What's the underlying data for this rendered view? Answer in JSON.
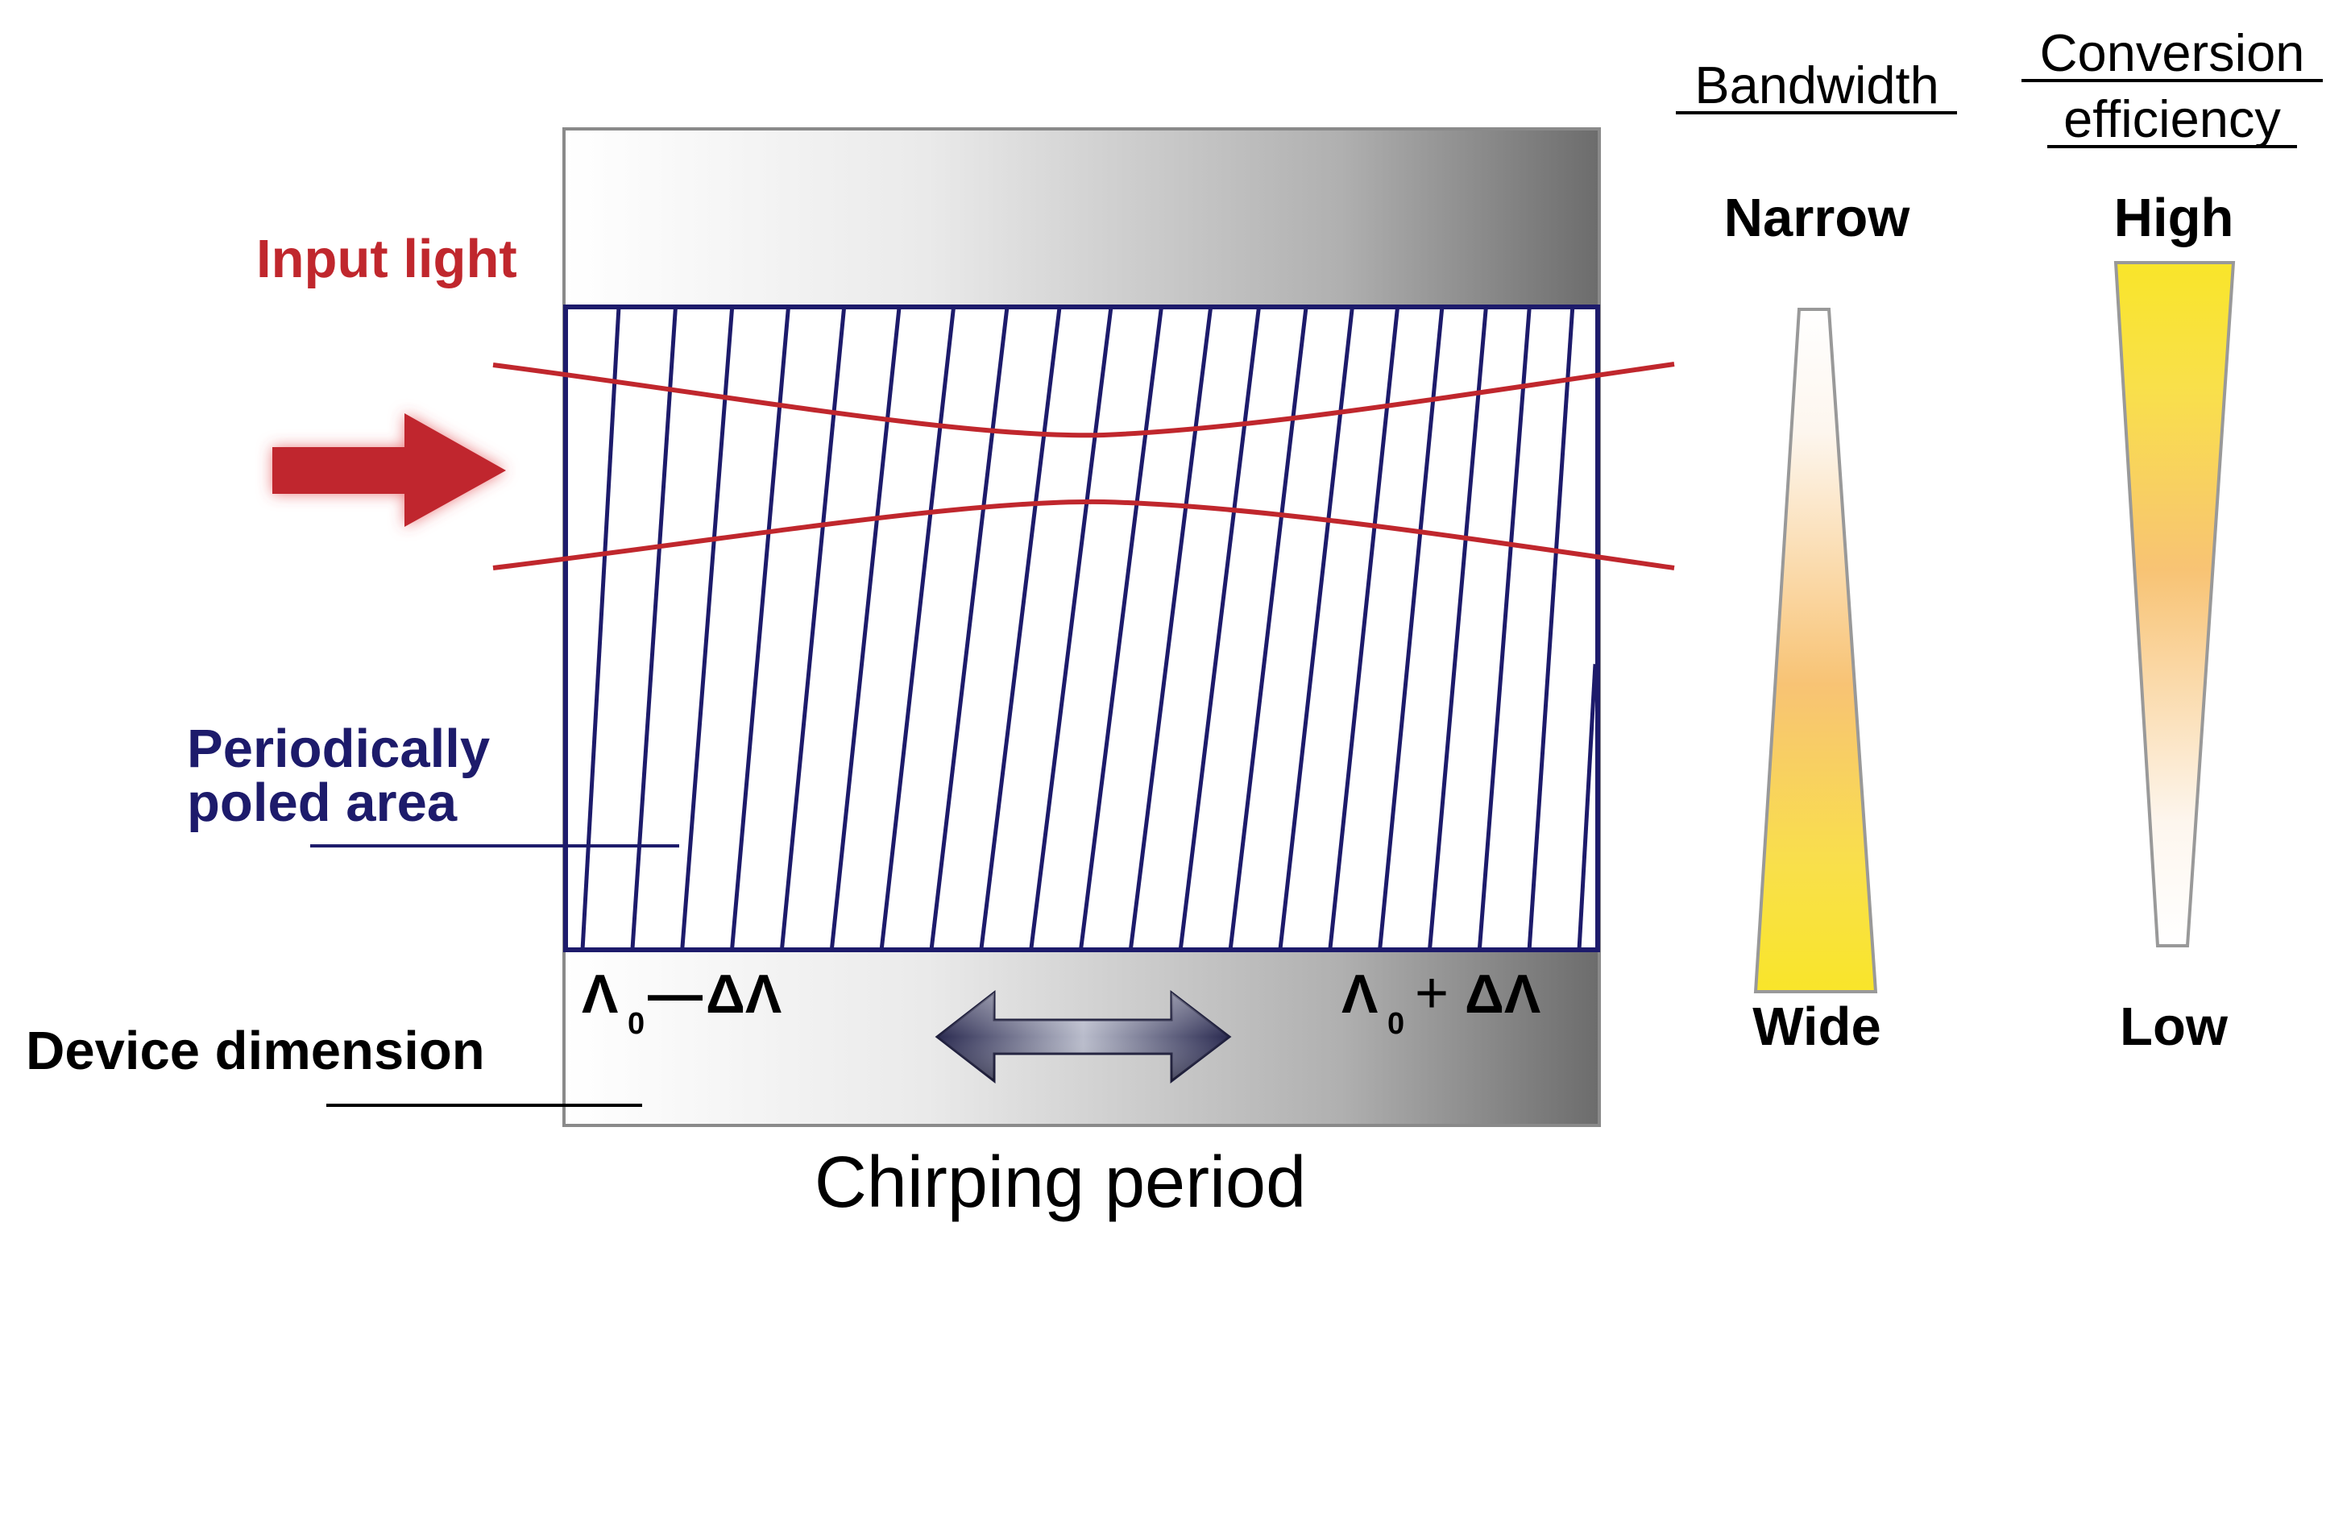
{
  "labels": {
    "input_light": "Input light",
    "poled_area_line1": "Periodically",
    "poled_area_line2": "poled area",
    "device_dimension": "Device dimension",
    "chirping_period": "Chirping period",
    "lambda_minus": {
      "base": "Λ",
      "sub": "0",
      "op": "—",
      "delta": "ΔΛ"
    },
    "lambda_plus": {
      "base": "Λ",
      "sub": "0",
      "op": "+",
      "delta": "ΔΛ"
    }
  },
  "bandwidth": {
    "title": "Bandwidth",
    "top_label": "Narrow",
    "bottom_label": "Wide"
  },
  "conversion_efficiency": {
    "title_line1": "Conversion",
    "title_line2": "efficiency",
    "top_label": "High",
    "bottom_label": "Low"
  },
  "colors": {
    "accent_red": "#c0272d",
    "navy": "#1d1b6b",
    "yellow": "#f9e52a",
    "orange": "#f8c374",
    "gray_dark": "#6f6f6f"
  }
}
